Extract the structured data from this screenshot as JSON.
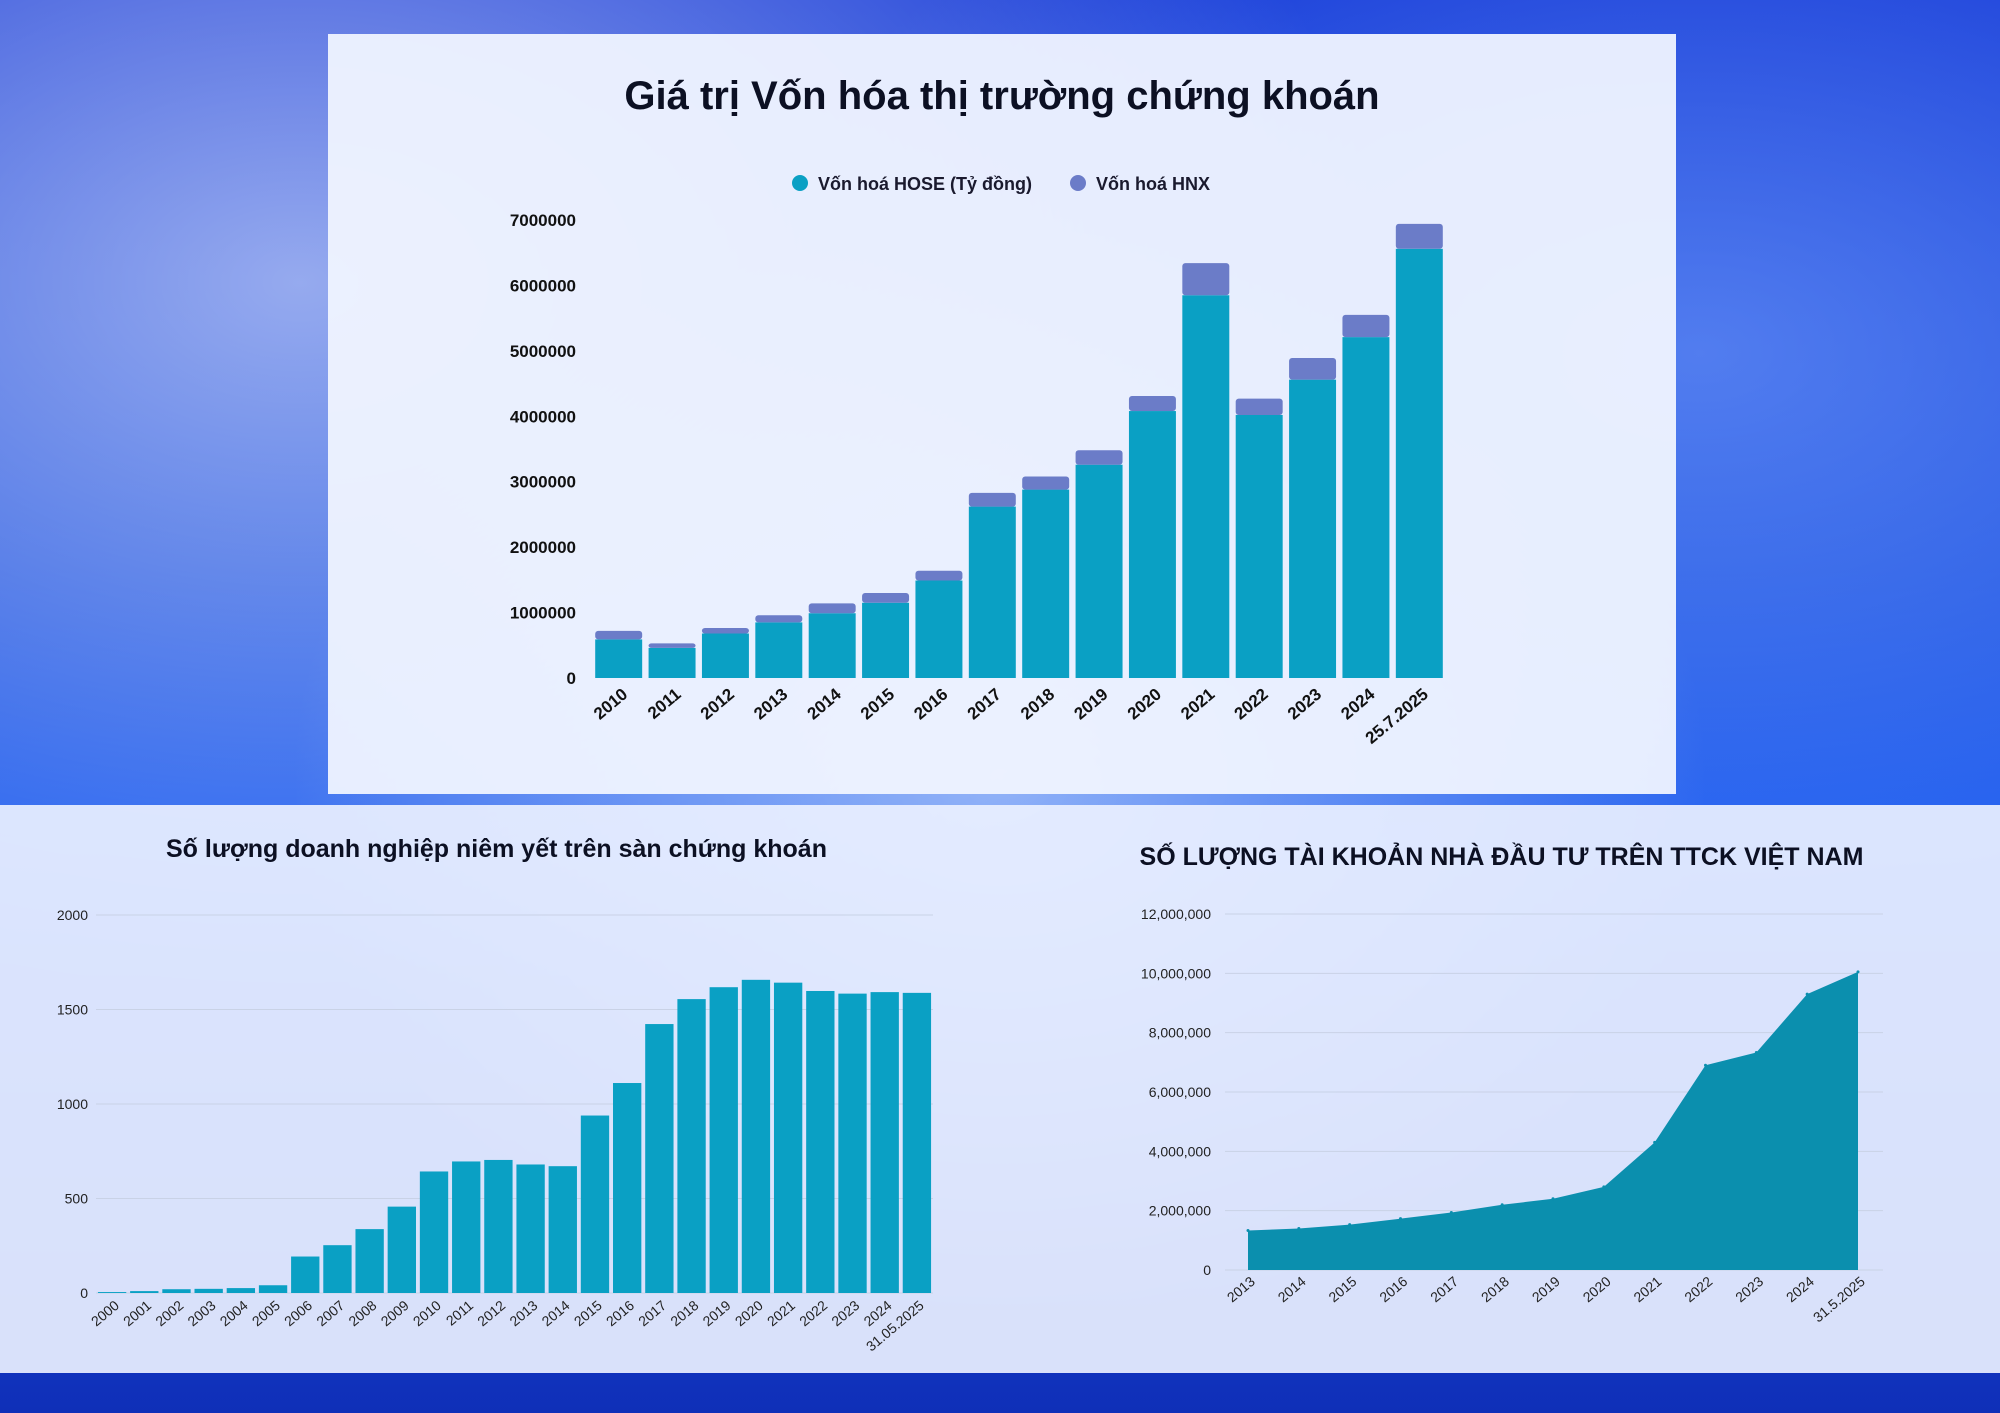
{
  "colors": {
    "hose": "#0aa0c4",
    "hnx": "#6b7cc8",
    "bar": "#0aa0c4",
    "area": "#0b8fae",
    "grid": "#c9d2e6"
  },
  "chart_data": [
    {
      "type": "bar",
      "stacked": true,
      "title": "Giá trị Vốn hóa thị trường chứng khoán",
      "categories": [
        "2010",
        "2011",
        "2012",
        "2013",
        "2014",
        "2015",
        "2016",
        "2017",
        "2018",
        "2019",
        "2020",
        "2021",
        "2022",
        "2023",
        "2024",
        "25.7.2025"
      ],
      "series": [
        {
          "name": "Vốn hoá HOSE (Tỷ đồng)",
          "values": [
            590000,
            460000,
            680000,
            850000,
            990000,
            1150000,
            1490000,
            2620000,
            2880000,
            3260000,
            4080000,
            5850000,
            4020000,
            4560000,
            5210000,
            6560000
          ]
        },
        {
          "name": "Vốn hoá HNX",
          "values": [
            130000,
            70000,
            85000,
            110000,
            150000,
            150000,
            150000,
            210000,
            200000,
            220000,
            230000,
            490000,
            250000,
            330000,
            340000,
            380000
          ]
        }
      ],
      "ylim": [
        0,
        7000000
      ],
      "yticks": [
        "7000000",
        "6000000",
        "5000000",
        "4000000",
        "3000000",
        "2000000",
        "1000000",
        "0"
      ],
      "legend": "top",
      "grid": false
    },
    {
      "type": "bar",
      "title": "Số lượng doanh nghiệp niêm yết trên sàn chứng khoán",
      "categories": [
        "2000",
        "2001",
        "2002",
        "2003",
        "2004",
        "2005",
        "2006",
        "2007",
        "2008",
        "2009",
        "2010",
        "2011",
        "2012",
        "2013",
        "2014",
        "2015",
        "2016",
        "2017",
        "2018",
        "2019",
        "2020",
        "2021",
        "2022",
        "2023",
        "2024",
        "31.05.2025"
      ],
      "values": [
        5,
        10,
        20,
        22,
        26,
        41,
        193,
        253,
        338,
        457,
        643,
        696,
        704,
        680,
        671,
        939,
        1111,
        1423,
        1555,
        1618,
        1657,
        1642,
        1598,
        1584,
        1592,
        1588
      ],
      "ylim": [
        0,
        2000
      ],
      "yticks": [
        "2000",
        "1500",
        "1000",
        "500",
        "0"
      ],
      "grid": true
    },
    {
      "type": "area",
      "title": "SỐ LƯỢNG TÀI KHOẢN NHÀ ĐẦU TƯ TRÊN TTCK VIỆT NAM",
      "categories": [
        "2013",
        "2014",
        "2015",
        "2016",
        "2017",
        "2018",
        "2019",
        "2020",
        "2021",
        "2022",
        "2023",
        "2024",
        "31.5.2025"
      ],
      "values": [
        1330000,
        1400000,
        1530000,
        1730000,
        1940000,
        2200000,
        2400000,
        2800000,
        4300000,
        6900000,
        7330000,
        9300000,
        10050000
      ],
      "ylim": [
        0,
        12000000
      ],
      "yticks": [
        "12,000,000",
        "10,000,000",
        "8,000,000",
        "6,000,000",
        "4,000,000",
        "2,000,000",
        "0"
      ],
      "grid": true
    }
  ]
}
